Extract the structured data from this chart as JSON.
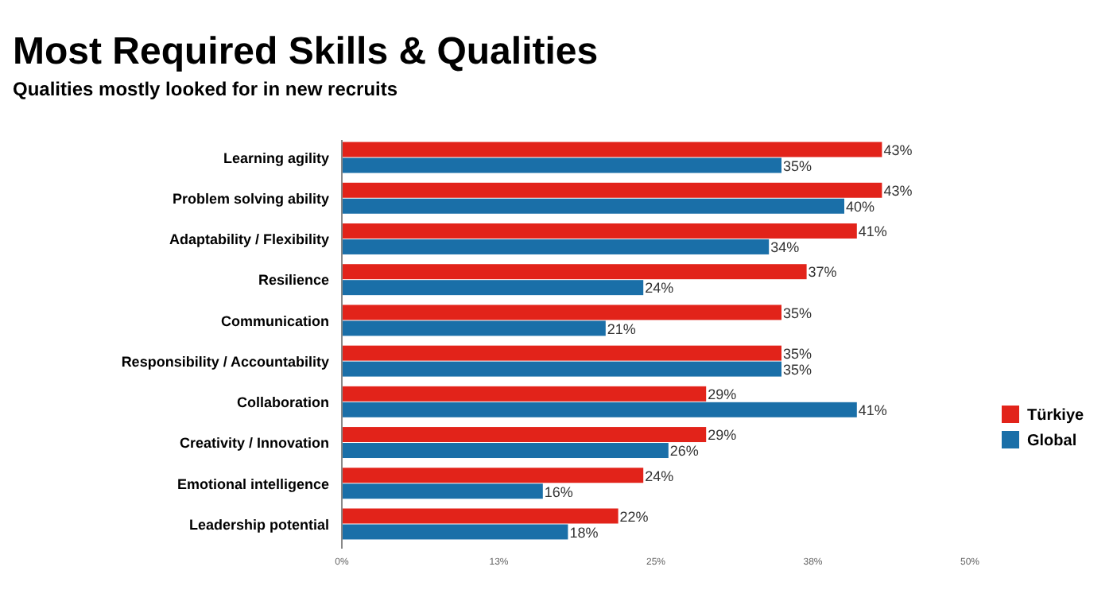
{
  "chart_data": {
    "type": "bar",
    "orientation": "horizontal",
    "title": "Most Required Skills & Qualities",
    "subtitle": "Qualities mostly looked for in new recruits",
    "categories": [
      "Learning agility",
      "Problem solving ability",
      "Adaptability / Flexibility",
      "Resilience",
      "Communication",
      "Responsibility / Accountability",
      "Collaboration",
      "Creativity / Innovation",
      "Emotional intelligence",
      "Leadership potential"
    ],
    "series": [
      {
        "name": "Türkiye",
        "color": "#e2231a",
        "values": [
          43,
          43,
          41,
          37,
          35,
          35,
          29,
          29,
          24,
          22
        ],
        "value_labels": [
          "43%",
          "43%",
          "41%",
          "37%",
          "35%",
          "35%",
          "29%",
          "29%",
          "24%",
          "22%"
        ]
      },
      {
        "name": "Global",
        "color": "#1a6fa8",
        "values": [
          35,
          40,
          34,
          24,
          21,
          35,
          41,
          26,
          16,
          18
        ],
        "value_labels": [
          "35%",
          "40%",
          "34%",
          "24%",
          "21%",
          "35%",
          "41%",
          "26%",
          "16%",
          "18%"
        ]
      }
    ],
    "xlim": [
      0,
      50
    ],
    "xticks": [
      {
        "value": 0,
        "label": "0%"
      },
      {
        "value": 12.5,
        "label": "13%"
      },
      {
        "value": 25,
        "label": "25%"
      },
      {
        "value": 37.5,
        "label": "38%"
      },
      {
        "value": 50,
        "label": "50%"
      }
    ],
    "legend": "right"
  }
}
